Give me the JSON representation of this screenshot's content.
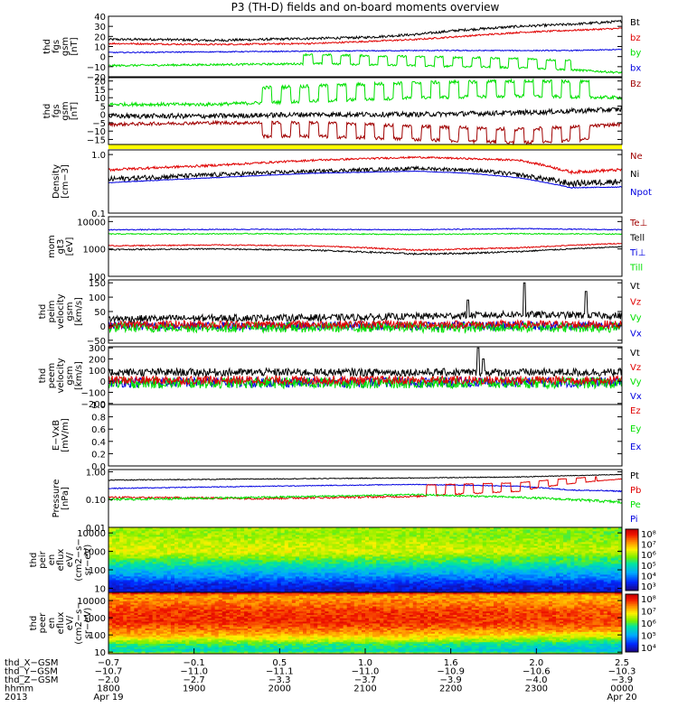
{
  "title": "P3 (TH-D) fields and on-board moments overview",
  "colors": {
    "black": "#000000",
    "red": "#e00000",
    "green": "#00e000",
    "blue": "#0000e0",
    "darkred": "#a00000",
    "yellow": "#ffff00"
  },
  "chart_data": [
    {
      "type": "line",
      "id": "p1",
      "ylabel": [
        "thd",
        "fgs",
        "gsm",
        "[nT]"
      ],
      "ylim": [
        -20,
        40
      ],
      "yticks": [
        -20,
        -10,
        0,
        10,
        20,
        30,
        40
      ],
      "yticklabels": [
        "−20",
        "−10",
        "0",
        "10",
        "20",
        "30",
        "40"
      ],
      "legend": [
        {
          "text": "Bt",
          "color": "#000000"
        },
        {
          "text": "bz",
          "color": "#e00000"
        },
        {
          "text": "by",
          "color": "#00e000"
        },
        {
          "text": "bx",
          "color": "#0000e0"
        }
      ],
      "series": [
        {
          "name": "Bt",
          "color": "#000000",
          "x": [
            0,
            0.1,
            0.2,
            0.3,
            0.4,
            0.5,
            0.6,
            0.68,
            0.8,
            0.9,
            1.0
          ],
          "y": [
            17,
            17,
            16,
            17,
            18,
            19,
            22,
            26,
            30,
            32,
            35
          ],
          "noise": 1.2
        },
        {
          "name": "bz",
          "color": "#e00000",
          "x": [
            0,
            0.2,
            0.4,
            0.6,
            0.8,
            1.0
          ],
          "y": [
            13,
            12,
            13,
            17,
            24,
            28
          ],
          "noise": 0.8
        },
        {
          "name": "by",
          "color": "#00e000",
          "x": [
            0,
            0.2,
            0.4,
            0.6,
            0.8,
            0.9,
            1.0
          ],
          "y": [
            -9,
            -8,
            -7,
            -9,
            -11,
            -13,
            -16
          ],
          "noise": 1.0,
          "square": {
            "from": 0.38,
            "to": 0.9,
            "amp": 9
          }
        },
        {
          "name": "bx",
          "color": "#0000e0",
          "x": [
            0,
            0.3,
            0.6,
            0.9,
            1.0
          ],
          "y": [
            4,
            5,
            6,
            6,
            7
          ],
          "noise": 0.5
        }
      ]
    },
    {
      "type": "line",
      "id": "p2",
      "ylabel": [
        "thd",
        "fgs",
        "gsm",
        "[nT]"
      ],
      "ylim": [
        -18,
        22
      ],
      "yticks": [
        -15,
        -10,
        -5,
        0,
        5,
        10,
        15,
        20
      ],
      "yticklabels": [
        "−15",
        "−10",
        "−5",
        "0",
        "5",
        "10",
        "15",
        "20"
      ],
      "legend": [
        {
          "text": "Bz",
          "color": "#a00000"
        }
      ],
      "series": [
        {
          "name": "Bz",
          "color": "#00e000",
          "x": [
            0,
            0.2,
            0.4,
            0.6,
            0.8,
            1.0
          ],
          "y": [
            6,
            6,
            8,
            10,
            11,
            10
          ],
          "noise": 1.0,
          "square": {
            "from": 0.3,
            "to": 0.95,
            "amp": 9
          }
        },
        {
          "name": "",
          "color": "#000000",
          "x": [
            0,
            0.2,
            0.4,
            0.6,
            0.8,
            1.0
          ],
          "y": [
            -1,
            -1,
            0,
            0,
            1,
            3
          ],
          "noise": 1.5
        },
        {
          "name": "",
          "color": "#a00000",
          "x": [
            0,
            0.2,
            0.4,
            0.6,
            0.8,
            1.0
          ],
          "y": [
            -6,
            -5,
            -5,
            -7,
            -9,
            -6
          ],
          "noise": 1.0,
          "square": {
            "from": 0.3,
            "to": 0.95,
            "amp": -8
          }
        }
      ]
    },
    {
      "type": "line",
      "id": "p3",
      "scale": "log",
      "ylabel": [
        "Density",
        "[cm−3]"
      ],
      "ylim": [
        0.1,
        1.2
      ],
      "yticks": [
        0.1,
        1.0
      ],
      "yticklabels": [
        "0.1",
        "1.0"
      ],
      "legend": [
        {
          "text": "Ne",
          "color": "#a00000"
        },
        {
          "text": "Ni",
          "color": "#000000"
        },
        {
          "text": "Npot",
          "color": "#0000e0"
        }
      ],
      "series": [
        {
          "name": "Ne",
          "color": "#e00000",
          "x": [
            0,
            0.2,
            0.4,
            0.6,
            0.7,
            0.8,
            0.9,
            1.0
          ],
          "y": [
            0.55,
            0.65,
            0.8,
            0.9,
            0.85,
            0.8,
            0.5,
            0.55
          ],
          "noise": 0.03
        },
        {
          "name": "Ni",
          "color": "#000000",
          "x": [
            0,
            0.2,
            0.4,
            0.6,
            0.7,
            0.8,
            0.9,
            1.0
          ],
          "y": [
            0.38,
            0.45,
            0.52,
            0.58,
            0.55,
            0.45,
            0.32,
            0.35
          ],
          "noise": 0.04
        },
        {
          "name": "Npot",
          "color": "#0000e0",
          "x": [
            0,
            0.2,
            0.4,
            0.6,
            0.7,
            0.8,
            0.9,
            1.0
          ],
          "y": [
            0.33,
            0.4,
            0.48,
            0.52,
            0.48,
            0.4,
            0.27,
            0.28
          ],
          "noise": 0.005
        }
      ]
    },
    {
      "type": "line",
      "id": "p4",
      "scale": "log",
      "ylabel": [
        "mom",
        "gt3",
        "[eV]"
      ],
      "ylim": [
        100,
        15000
      ],
      "yticks": [
        100,
        1000,
        10000
      ],
      "yticklabels": [
        "100",
        "1000",
        "10000"
      ],
      "legend": [
        {
          "text": "Te⊥",
          "color": "#a00000"
        },
        {
          "text": "Tell",
          "color": "#000000"
        },
        {
          "text": "Ti⊥",
          "color": "#0000e0"
        },
        {
          "text": "Till",
          "color": "#00e000"
        }
      ],
      "series": [
        {
          "name": "Ti⊥",
          "color": "#0000e0",
          "x": [
            0,
            0.3,
            0.6,
            0.8,
            1.0
          ],
          "y": [
            5000,
            5200,
            5000,
            5500,
            5000
          ],
          "noise": 200
        },
        {
          "name": "Till",
          "color": "#00e000",
          "x": [
            0,
            0.3,
            0.6,
            0.8,
            1.0
          ],
          "y": [
            3500,
            3600,
            3400,
            3600,
            3500
          ],
          "noise": 150
        },
        {
          "name": "Te⊥",
          "color": "#e00000",
          "x": [
            0,
            0.2,
            0.4,
            0.6,
            0.7,
            0.8,
            1.0
          ],
          "y": [
            1300,
            1400,
            1300,
            900,
            1000,
            1100,
            1600
          ],
          "noise": 60
        },
        {
          "name": "Tell",
          "color": "#000000",
          "x": [
            0,
            0.2,
            0.4,
            0.6,
            0.7,
            0.8,
            1.0
          ],
          "y": [
            950,
            1000,
            900,
            650,
            700,
            800,
            1200
          ],
          "noise": 50
        }
      ]
    },
    {
      "type": "line",
      "id": "p5",
      "ylabel": [
        "thd",
        "peim",
        "velocity",
        "gsm",
        "[km/s]"
      ],
      "ylim": [
        -60,
        160
      ],
      "yticks": [
        -50,
        0,
        50,
        100,
        150
      ],
      "yticklabels": [
        "−50",
        "0",
        "50",
        "100",
        "150"
      ],
      "legend": [
        {
          "text": "Vt",
          "color": "#000000"
        },
        {
          "text": "Vz",
          "color": "#e00000"
        },
        {
          "text": "Vy",
          "color": "#00e000"
        },
        {
          "text": "Vx",
          "color": "#0000e0"
        }
      ],
      "series": [
        {
          "name": "Vx",
          "color": "#0000e0",
          "x": [
            0,
            1
          ],
          "y": [
            0,
            0
          ],
          "noise": 15
        },
        {
          "name": "Vy",
          "color": "#00e000",
          "x": [
            0,
            1
          ],
          "y": [
            -5,
            -5
          ],
          "noise": 18
        },
        {
          "name": "Vz",
          "color": "#e00000",
          "x": [
            0,
            1
          ],
          "y": [
            5,
            5
          ],
          "noise": 14
        },
        {
          "name": "Vt",
          "color": "#000000",
          "x": [
            0,
            0.5,
            0.8,
            1.0
          ],
          "y": [
            25,
            30,
            40,
            35
          ],
          "noise": 12,
          "spikes": [
            [
              0.81,
              150
            ],
            [
              0.7,
              90
            ],
            [
              0.93,
              120
            ]
          ]
        }
      ]
    },
    {
      "type": "line",
      "id": "p6",
      "ylabel": [
        "thd",
        "peem",
        "velocity",
        "gsm",
        "[km/s]"
      ],
      "ylim": [
        -210,
        310
      ],
      "yticks": [
        -200,
        -100,
        0,
        100,
        200,
        300
      ],
      "yticklabels": [
        "−200",
        "−100",
        "0",
        "100",
        "200",
        "300"
      ],
      "legend": [
        {
          "text": "Vt",
          "color": "#000000"
        },
        {
          "text": "Vz",
          "color": "#e00000"
        },
        {
          "text": "Vy",
          "color": "#00e000"
        },
        {
          "text": "Vx",
          "color": "#0000e0"
        }
      ],
      "series": [
        {
          "name": "Vx",
          "color": "#0000e0",
          "x": [
            0,
            1
          ],
          "y": [
            -10,
            -10
          ],
          "noise": 45
        },
        {
          "name": "Vy",
          "color": "#00e000",
          "x": [
            0,
            1
          ],
          "y": [
            -15,
            -15
          ],
          "noise": 50
        },
        {
          "name": "Vz",
          "color": "#e00000",
          "x": [
            0,
            1
          ],
          "y": [
            10,
            10
          ],
          "noise": 40
        },
        {
          "name": "Vt",
          "color": "#000000",
          "x": [
            0,
            1
          ],
          "y": [
            80,
            80
          ],
          "noise": 35,
          "spikes": [
            [
              0.72,
              300
            ],
            [
              0.73,
              200
            ]
          ]
        }
      ]
    },
    {
      "type": "line",
      "id": "p7",
      "ylabel": [
        "E−VxB",
        "[mV/m]"
      ],
      "ylim": [
        0,
        1
      ],
      "yticks": [
        0,
        0.2,
        0.4,
        0.6,
        0.8,
        1.0
      ],
      "yticklabels": [
        "0.0",
        "0.2",
        "0.4",
        "0.6",
        "0.8",
        "1.0"
      ],
      "legend": [
        {
          "text": "Ez",
          "color": "#e00000"
        },
        {
          "text": "Ey",
          "color": "#00e000"
        },
        {
          "text": "Ex",
          "color": "#0000e0"
        }
      ],
      "series": []
    },
    {
      "type": "line",
      "id": "p8",
      "scale": "log",
      "ylabel": [
        "Pressure",
        "[nPa]"
      ],
      "ylim": [
        0.01,
        1.2
      ],
      "yticks": [
        0.01,
        0.1,
        1.0
      ],
      "yticklabels": [
        "0.01",
        "0.10",
        "1.00"
      ],
      "legend": [
        {
          "text": "Pt",
          "color": "#000000"
        },
        {
          "text": "Pb",
          "color": "#e00000"
        },
        {
          "text": "Pe",
          "color": "#00e000"
        },
        {
          "text": "Pi",
          "color": "#0000e0"
        }
      ],
      "series": [
        {
          "name": "Pt",
          "color": "#000000",
          "x": [
            0,
            0.3,
            0.6,
            0.8,
            1.0
          ],
          "y": [
            0.5,
            0.55,
            0.6,
            0.65,
            0.8
          ],
          "noise": 0.02
        },
        {
          "name": "Pi",
          "color": "#0000e0",
          "x": [
            0,
            0.3,
            0.6,
            0.8,
            0.9,
            1.0
          ],
          "y": [
            0.25,
            0.3,
            0.35,
            0.3,
            0.22,
            0.2
          ],
          "noise": 0.01
        },
        {
          "name": "Pb",
          "color": "#e00000",
          "x": [
            0,
            0.3,
            0.6,
            0.8,
            1.0
          ],
          "y": [
            0.12,
            0.11,
            0.13,
            0.2,
            0.55
          ],
          "noise": 0.01,
          "square": {
            "from": 0.62,
            "to": 0.95,
            "amp": 0.2
          }
        },
        {
          "name": "Pe",
          "color": "#00e000",
          "x": [
            0,
            0.3,
            0.6,
            0.8,
            1.0
          ],
          "y": [
            0.1,
            0.12,
            0.15,
            0.12,
            0.08
          ],
          "noise": 0.01
        }
      ]
    },
    {
      "type": "heatmap",
      "id": "p9",
      "scale": "log",
      "ylabel": [
        "thd",
        "peir",
        "en",
        "eflux",
        "eV/",
        "(cm2−s−",
        "sr−eV)"
      ],
      "ylim": [
        6,
        20000
      ],
      "yticks": [
        10,
        100,
        1000,
        10000
      ],
      "yticklabels": [
        "10",
        "100",
        "1000",
        "10000"
      ],
      "colorbar": {
        "ticks": [
          "10⁸",
          "10⁷",
          "10⁶",
          "10⁵",
          "10⁴",
          "10³"
        ]
      },
      "profile": [
        [
          6,
          0.08
        ],
        [
          15,
          0.12
        ],
        [
          40,
          0.25
        ],
        [
          100,
          0.35
        ],
        [
          300,
          0.5
        ],
        [
          1000,
          0.65
        ],
        [
          3000,
          0.62
        ],
        [
          10000,
          0.58
        ],
        [
          20000,
          0.6
        ]
      ]
    },
    {
      "type": "heatmap",
      "id": "p10",
      "scale": "log",
      "ylabel": [
        "thd",
        "peer",
        "en",
        "eflux",
        "eV/",
        "(cm2−s−",
        "sr−eV)"
      ],
      "ylim": [
        8,
        30000
      ],
      "yticks": [
        10,
        100,
        1000,
        10000
      ],
      "yticklabels": [
        "10",
        "100",
        "1000",
        "10000"
      ],
      "colorbar": {
        "ticks": [
          "10⁸",
          "10⁷",
          "10⁶",
          "10⁵",
          "10⁴"
        ]
      },
      "profile": [
        [
          8,
          0.7
        ],
        [
          12,
          0.4
        ],
        [
          30,
          0.5
        ],
        [
          100,
          0.75
        ],
        [
          500,
          0.9
        ],
        [
          2000,
          0.9
        ],
        [
          8000,
          0.82
        ],
        [
          20000,
          0.78
        ],
        [
          30000,
          0.95
        ]
      ]
    }
  ],
  "x_axis": {
    "rows": [
      {
        "label": "thd_X−GSM",
        "values": [
          "−0.7",
          "−0.1",
          "0.5",
          "1.0",
          "1.6",
          "2.0",
          "2.5"
        ]
      },
      {
        "label": "thd_Y−GSM",
        "values": [
          "−10.7",
          "−11.0",
          "−11.1",
          "−11.0",
          "−10.9",
          "−10.6",
          "−10.3"
        ]
      },
      {
        "label": "thd_Z−GSM",
        "values": [
          "−2.0",
          "−2.7",
          "−3.3",
          "−3.7",
          "−3.9",
          "−4.0",
          "−3.9"
        ]
      },
      {
        "label": "hhmm",
        "values": [
          "1800",
          "1900",
          "2000",
          "2100",
          "2200",
          "2300",
          "0000"
        ]
      },
      {
        "label": "2013",
        "values": [
          "Apr 19",
          "",
          "",
          "",
          "",
          "",
          "Apr 20"
        ]
      }
    ]
  }
}
